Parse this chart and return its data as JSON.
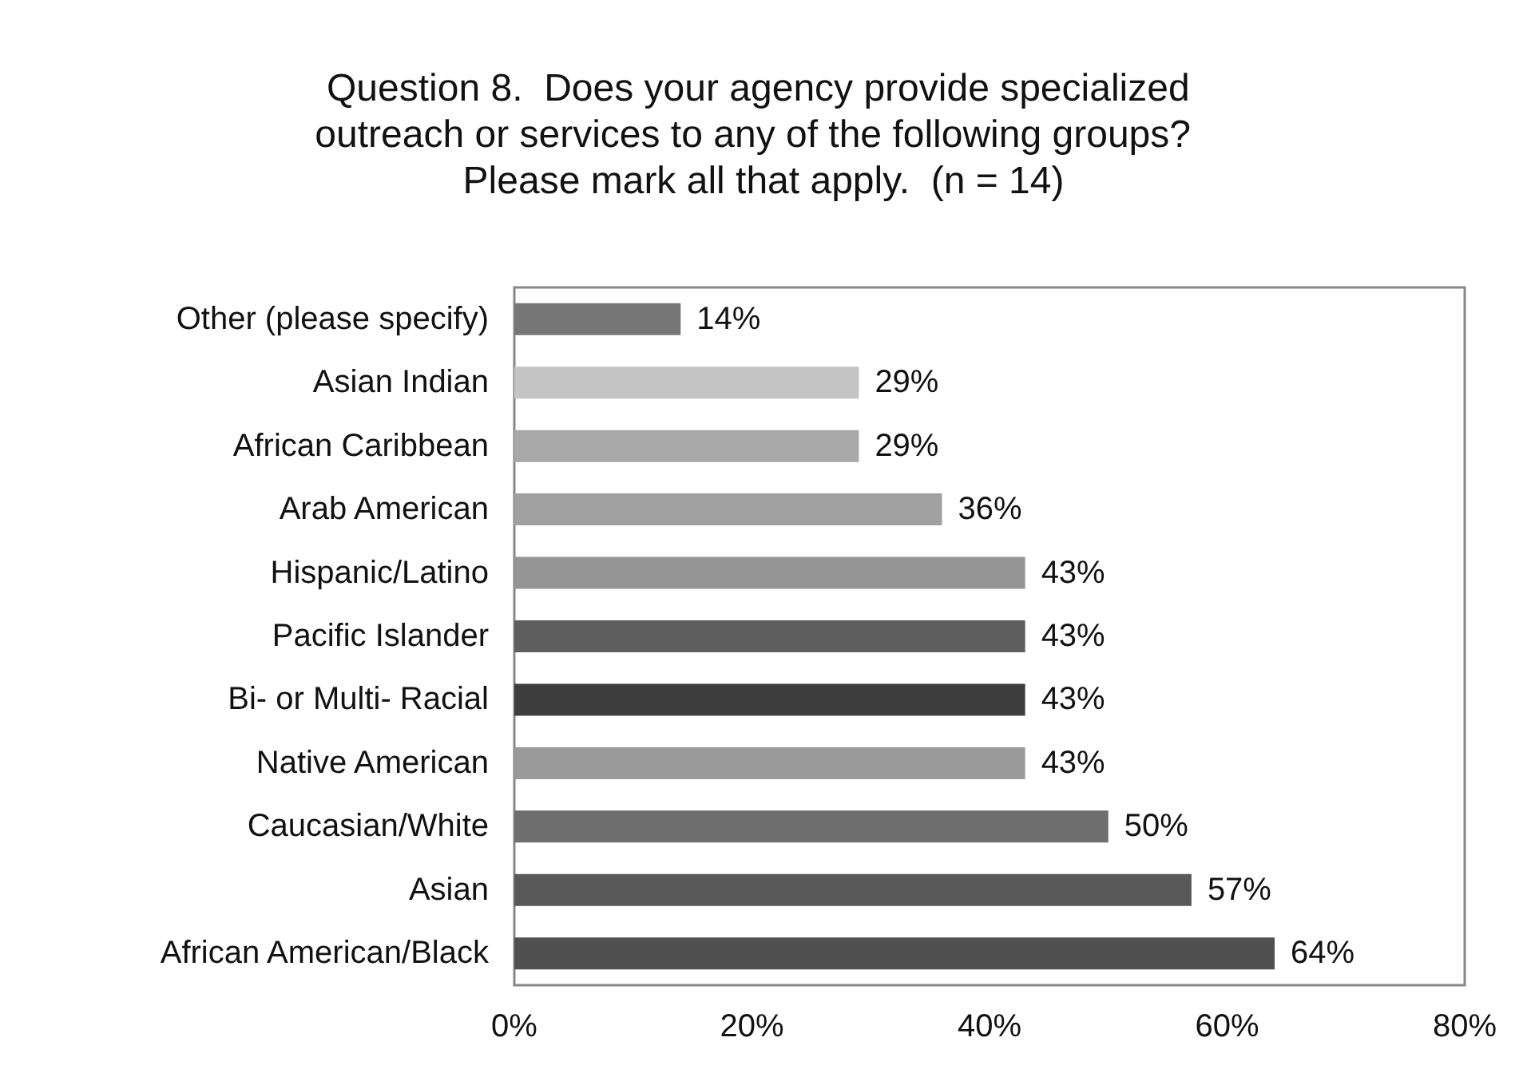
{
  "chart_data": {
    "type": "bar",
    "orientation": "horizontal",
    "title": "Question 8.  Does your agency provide specialized outreach or services to any of the following groups?  Please mark all that apply.  (n = 14)",
    "categories": [
      "Other (please specify)",
      "Asian Indian",
      "African Caribbean",
      "Arab American",
      "Hispanic/Latino",
      "Pacific Islander",
      "Bi- or Multi- Racial",
      "Native American",
      "Caucasian/White",
      "Asian",
      "African American/Black"
    ],
    "values": [
      14,
      29,
      29,
      36,
      43,
      43,
      43,
      43,
      50,
      57,
      64
    ],
    "colors": [
      "#777777",
      "#c4c4c4",
      "#a8a8a8",
      "#a0a0a0",
      "#959595",
      "#5e5e5e",
      "#3e3e3e",
      "#9a9a9a",
      "#6e6e6e",
      "#595959",
      "#505050"
    ],
    "value_labels": [
      "14%",
      "29%",
      "29%",
      "36%",
      "43%",
      "43%",
      "43%",
      "43%",
      "50%",
      "57%",
      "64%"
    ],
    "xlim": [
      0,
      80
    ],
    "xticks": [
      {
        "value": 0,
        "label": "0%"
      },
      {
        "value": 20,
        "label": "20%"
      },
      {
        "value": 40,
        "label": "40%"
      },
      {
        "value": 60,
        "label": "60%"
      },
      {
        "value": 80,
        "label": "80%"
      }
    ],
    "grid": false
  }
}
